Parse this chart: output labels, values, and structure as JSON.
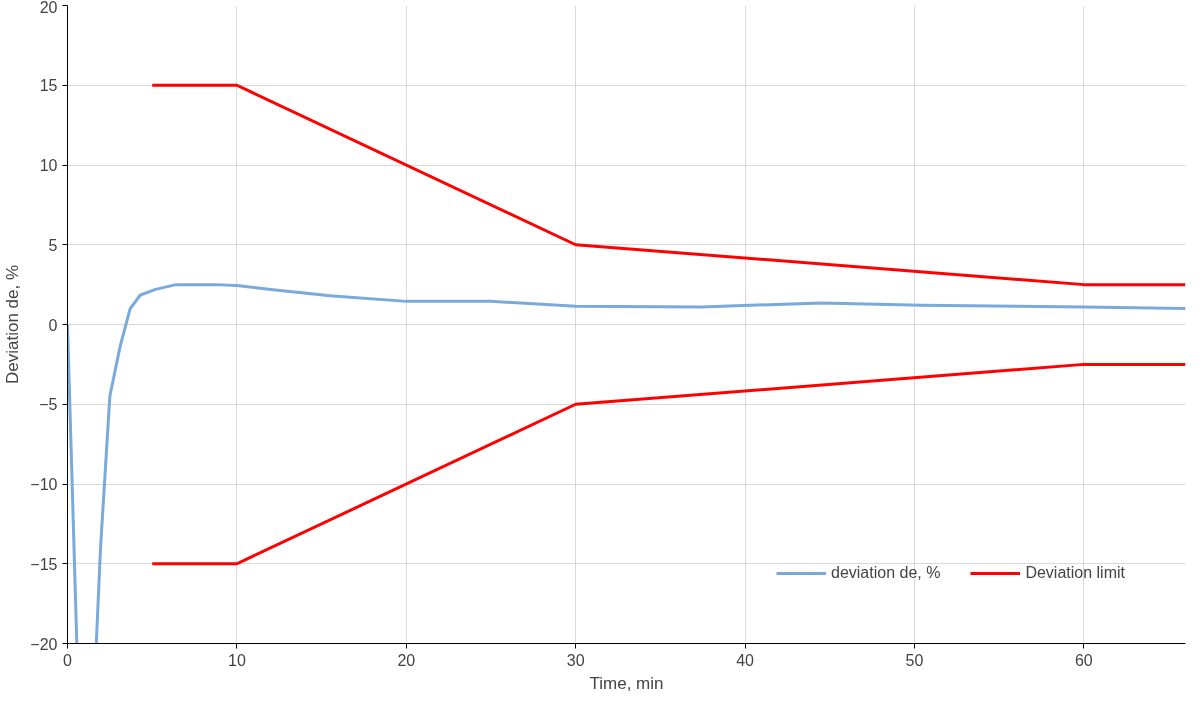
{
  "chart_data": {
    "type": "line",
    "xlabel": "Time, min",
    "ylabel": "Deviation de, %",
    "xlim": [
      0,
      66
    ],
    "xticks": [
      0,
      10,
      20,
      30,
      40,
      50,
      60
    ],
    "ylim": [
      -20,
      20
    ],
    "yticks": [
      -20,
      -15,
      -10,
      -5,
      0,
      5,
      10,
      15,
      20
    ],
    "grid": true,
    "legend": "bottom right",
    "line_style": "solid",
    "marker": "none",
    "series": [
      {
        "name": "deviation de, %",
        "color": "#7aa9dc",
        "x": [
          0,
          0.55,
          1.1,
          1.7,
          1.95,
          2.5,
          3.1,
          3.7,
          4.3,
          5.2,
          6.4,
          8.7,
          10,
          12,
          15.5,
          20,
          25,
          30,
          37.4,
          44.5,
          50.4,
          60,
          66
        ],
        "values": [
          0,
          -20,
          null,
          -20,
          -14,
          -4.5,
          -1.4,
          1.0,
          1.85,
          2.2,
          2.5,
          2.5,
          2.45,
          2.2,
          1.8,
          1.45,
          1.45,
          1.15,
          1.1,
          1.35,
          1.2,
          1.1,
          1.0
        ]
      },
      {
        "name": "Deviation limit",
        "color": "#ff0000",
        "x": [
          5,
          10,
          30,
          60,
          66
        ],
        "values": [
          15,
          15,
          5,
          2.5,
          2.5
        ]
      },
      {
        "color": "#ff0000",
        "x": [
          5,
          10,
          30,
          60,
          66
        ],
        "values": [
          -15,
          -15,
          -5,
          -2.5,
          -2.5
        ]
      }
    ]
  }
}
